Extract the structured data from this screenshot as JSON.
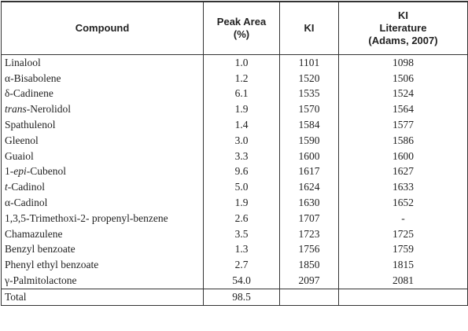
{
  "table": {
    "header": [
      [
        "Compound"
      ],
      [
        "Peak Area",
        "(%)"
      ],
      [
        "KI"
      ],
      [
        "KI",
        "Literature",
        "(Adams, 2007)"
      ]
    ],
    "rows": [
      {
        "compound": [
          "Linalool"
        ],
        "area": "1.0",
        "ki": "1101",
        "lit": "1098"
      },
      {
        "compound": [
          "α-Bisabolene"
        ],
        "area": "1.2",
        "ki": "1520",
        "lit": "1506"
      },
      {
        "compound": [
          "δ-Cadinene"
        ],
        "area": "6.1",
        "ki": "1535",
        "lit": "1524"
      },
      {
        "compound": [
          "trans",
          "-Nerolidol"
        ],
        "italic": [
          0
        ],
        "area": "1.9",
        "ki": "1570",
        "lit": "1564"
      },
      {
        "compound": [
          "Spathulenol"
        ],
        "area": "1.4",
        "ki": "1584",
        "lit": "1577"
      },
      {
        "compound": [
          "Gleenol"
        ],
        "area": "3.0",
        "ki": "1590",
        "lit": "1586"
      },
      {
        "compound": [
          "Guaiol"
        ],
        "area": "3.3",
        "ki": "1600",
        "lit": "1600"
      },
      {
        "compound": [
          "1-",
          "epi",
          "-Cubenol"
        ],
        "italic": [
          1
        ],
        "area": "9.6",
        "ki": "1617",
        "lit": "1627"
      },
      {
        "compound": [
          "t",
          "-Cadinol"
        ],
        "italic": [
          0
        ],
        "area": "5.0",
        "ki": "1624",
        "lit": "1633"
      },
      {
        "compound": [
          "α-Cadinol"
        ],
        "area": "1.9",
        "ki": "1630",
        "lit": "1652"
      },
      {
        "compound": [
          "1,3,5-Trimethoxi-2- propenyl-benzene"
        ],
        "area": "2.6",
        "ki": "1707",
        "lit": "-"
      },
      {
        "compound": [
          "Chamazulene"
        ],
        "area": "3.5",
        "ki": "1723",
        "lit": "1725"
      },
      {
        "compound": [
          "Benzyl benzoate"
        ],
        "area": "1.3",
        "ki": "1756",
        "lit": "1759"
      },
      {
        "compound": [
          "Phenyl ethyl benzoate"
        ],
        "area": "2.7",
        "ki": "1850",
        "lit": "1815"
      },
      {
        "compound": [
          "γ-Palmitolactone"
        ],
        "area": "54.0",
        "ki": "2097",
        "lit": "2081"
      },
      {
        "compound": [
          "Total"
        ],
        "area": "98.5",
        "ki": null,
        "lit": null
      }
    ]
  }
}
